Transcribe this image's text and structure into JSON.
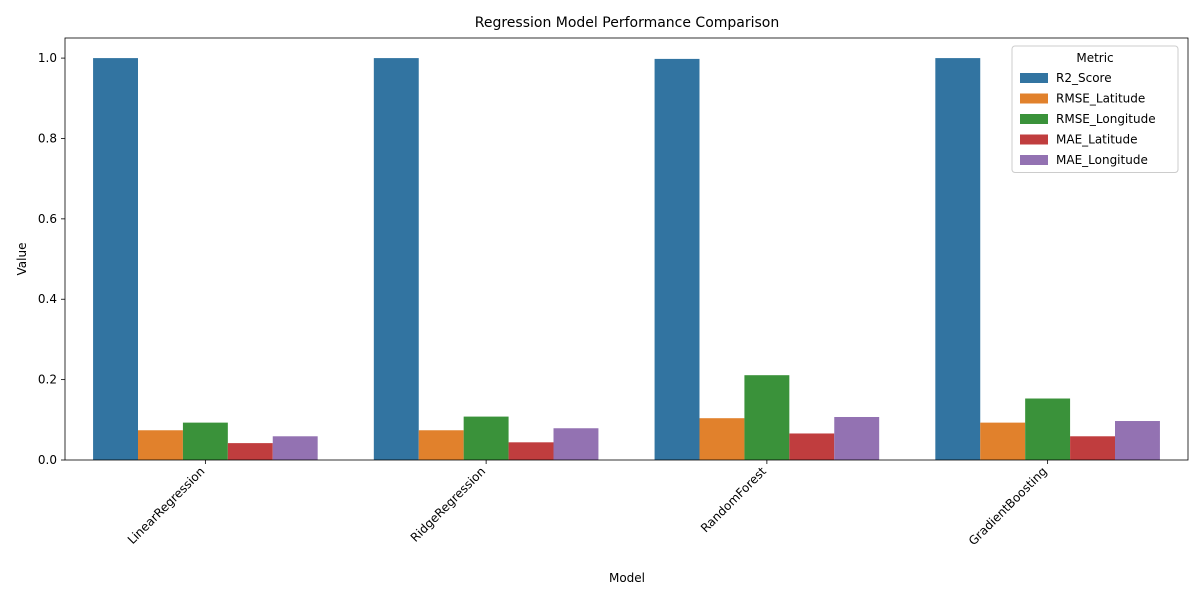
{
  "chart_data": {
    "type": "bar",
    "title": "Regression Model Performance Comparison",
    "xlabel": "Model",
    "ylabel": "Value",
    "ylim": [
      0,
      1.05
    ],
    "yticks": [
      "0.0",
      "0.2",
      "0.4",
      "0.6",
      "0.8",
      "1.0"
    ],
    "categories": [
      "LinearRegression",
      "RidgeRegression",
      "RandomForest",
      "GradientBoosting"
    ],
    "legend": {
      "title": "Metric",
      "placement": "top-right"
    },
    "series": [
      {
        "name": "R2_Score",
        "color": "#3274a1",
        "values": [
          1.0,
          1.0,
          0.998,
          1.0
        ]
      },
      {
        "name": "RMSE_Latitude",
        "color": "#e1812c",
        "values": [
          0.074,
          0.074,
          0.104,
          0.093
        ]
      },
      {
        "name": "RMSE_Longitude",
        "color": "#3a923a",
        "values": [
          0.093,
          0.108,
          0.211,
          0.153
        ]
      },
      {
        "name": "MAE_Latitude",
        "color": "#c03d3e",
        "values": [
          0.042,
          0.044,
          0.066,
          0.059
        ]
      },
      {
        "name": "MAE_Longitude",
        "color": "#9372b2",
        "values": [
          0.059,
          0.079,
          0.107,
          0.097
        ]
      }
    ]
  }
}
